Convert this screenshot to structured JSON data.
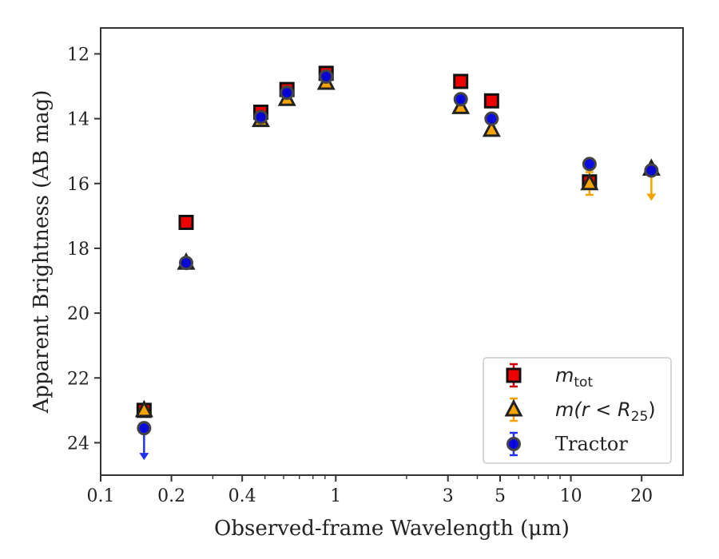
{
  "chart_data": {
    "type": "scatter",
    "title": "",
    "xlabel": "Observed-frame Wavelength (μm)",
    "ylabel": "Apparent Brightness (AB mag)",
    "xscale": "log",
    "xlim": [
      0.1,
      30
    ],
    "ylim": [
      25,
      11.2
    ],
    "y_inverted": true,
    "grid": false,
    "legend_position": "lower-right",
    "xticks": [
      {
        "value": 0.1,
        "label": "0.1"
      },
      {
        "value": 0.2,
        "label": "0.2"
      },
      {
        "value": 0.4,
        "label": "0.4"
      },
      {
        "value": 1,
        "label": "1"
      },
      {
        "value": 3,
        "label": "3"
      },
      {
        "value": 5,
        "label": "5"
      },
      {
        "value": 10,
        "label": "10"
      },
      {
        "value": 20,
        "label": "20"
      }
    ],
    "yticks": [
      {
        "value": 12,
        "label": "12"
      },
      {
        "value": 14,
        "label": "14"
      },
      {
        "value": 16,
        "label": "16"
      },
      {
        "value": 18,
        "label": "18"
      },
      {
        "value": 20,
        "label": "20"
      },
      {
        "value": 22,
        "label": "22"
      },
      {
        "value": 24,
        "label": "24"
      }
    ],
    "series": [
      {
        "legend_main": "m",
        "legend_sub": "tot",
        "legend_rest": "",
        "marker": "square",
        "color": "#ee0000",
        "errcolor": "#cc0000",
        "points": [
          {
            "x": 0.153,
            "y": 23.0
          },
          {
            "x": 0.231,
            "y": 17.2
          },
          {
            "x": 0.48,
            "y": 13.8
          },
          {
            "x": 0.62,
            "y": 13.1
          },
          {
            "x": 0.91,
            "y": 12.6
          },
          {
            "x": 3.4,
            "y": 12.85
          },
          {
            "x": 4.6,
            "y": 13.45
          },
          {
            "x": 12.0,
            "y": 15.95,
            "err": 0.15
          }
        ]
      },
      {
        "legend_main": "m(r < R",
        "legend_sub": "25",
        "legend_rest": ")",
        "marker": "triangle",
        "color": "#f5a300",
        "errcolor": "#f5a300",
        "points": [
          {
            "x": 0.153,
            "y": 23.0
          },
          {
            "x": 0.231,
            "y": 18.45
          },
          {
            "x": 0.48,
            "y": 14.05
          },
          {
            "x": 0.62,
            "y": 13.4
          },
          {
            "x": 0.91,
            "y": 12.9
          },
          {
            "x": 3.4,
            "y": 13.65
          },
          {
            "x": 4.6,
            "y": 14.35
          },
          {
            "x": 12.0,
            "y": 16.0,
            "err": 0.35
          },
          {
            "x": 22.0,
            "y": 15.55,
            "upper_limit": true
          }
        ]
      },
      {
        "legend_main": "Tractor",
        "legend_sub": "",
        "legend_rest": "",
        "marker": "circle",
        "color": "#0000dd",
        "errcolor": "#2233ee",
        "points": [
          {
            "x": 0.153,
            "y": 23.55,
            "upper_limit": true
          },
          {
            "x": 0.231,
            "y": 18.45
          },
          {
            "x": 0.48,
            "y": 13.95
          },
          {
            "x": 0.62,
            "y": 13.2
          },
          {
            "x": 0.91,
            "y": 12.7
          },
          {
            "x": 3.4,
            "y": 13.4
          },
          {
            "x": 4.6,
            "y": 14.0
          },
          {
            "x": 12.0,
            "y": 15.4
          },
          {
            "x": 22.0,
            "y": 15.6
          }
        ]
      }
    ]
  }
}
